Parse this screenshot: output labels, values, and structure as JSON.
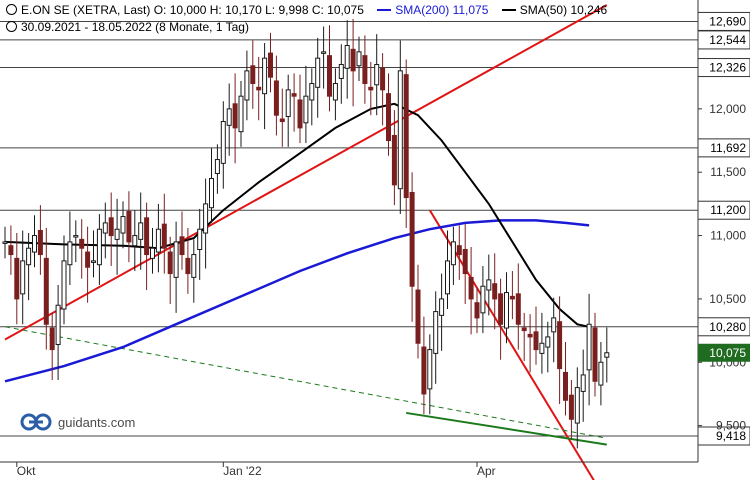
{
  "header": {
    "title": "E.ON SE (XETRA, Last)",
    "ohlc": "O: 10,000  H: 10,170  L: 9,998  C: 10,075",
    "sma200_label": "SMA(200)",
    "sma200_value": "11,075",
    "sma50_label": "SMA(50)",
    "sma50_value": "10,246",
    "range": "30.09.2021 - 18.05.2022",
    "period": "(8 Monate, 1 Tag)"
  },
  "watermark": "guidants.com",
  "colors": {
    "sma200": "#1a1ad6",
    "sma50": "#000000",
    "resistance": "#e01414",
    "support": "#1c7a1c",
    "candle_up": "#1a1a1a",
    "candle_down": "#7a1f1f",
    "last_price_bg": "#1f6b1f"
  },
  "chart_data": {
    "type": "candlestick",
    "x_ticks": [
      "Okt",
      "Jan '22",
      "Apr"
    ],
    "y_ticks": [
      9.5,
      10.0,
      10.5,
      11.0,
      11.5,
      12.0
    ],
    "y_tick_labels": [
      "9,500",
      "10,000",
      "10,500",
      "11,000",
      "11,500",
      "12,000"
    ],
    "price_lines": [
      {
        "value": 12.69,
        "label": "12,690"
      },
      {
        "value": 12.544,
        "label": "12,544"
      },
      {
        "value": 12.326,
        "label": "12,326"
      },
      {
        "value": 11.692,
        "label": "11,692"
      },
      {
        "value": 11.2,
        "label": "11,200"
      },
      {
        "value": 10.28,
        "label": "10,280"
      },
      {
        "value": 9.418,
        "label": "9,418"
      }
    ],
    "last_price": {
      "value": 10.075,
      "label": "10,075"
    },
    "closes": [
      10.95,
      10.85,
      10.5,
      10.8,
      10.9,
      11.0,
      10.85,
      10.3,
      10.1,
      10.45,
      10.8,
      10.95,
      11.0,
      10.9,
      10.75,
      10.8,
      11.05,
      11.1,
      11.0,
      11.05,
      11.15,
      10.95,
      11.0,
      11.1,
      10.85,
      10.9,
      11.05,
      10.9,
      10.7,
      10.95,
      10.85,
      10.7,
      10.85,
      11.05,
      11.25,
      11.45,
      11.6,
      11.9,
      12.0,
      11.85,
      12.1,
      12.3,
      12.2,
      12.15,
      12.4,
      12.25,
      11.95,
      11.9,
      12.15,
      12.1,
      11.85,
      12.1,
      12.2,
      12.4,
      12.45,
      12.1,
      12.2,
      12.35,
      12.5,
      12.3,
      12.45,
      12.2,
      12.15,
      12.35,
      12.15,
      11.75,
      11.4,
      12.3,
      11.3,
      10.6,
      10.15,
      9.75,
      10.1,
      10.4,
      10.5,
      10.8,
      10.95,
      10.85,
      10.7,
      10.5,
      10.35,
      10.6,
      10.65,
      10.5,
      10.3,
      10.55,
      10.5,
      10.3,
      10.25,
      10.2,
      10.1,
      10.15,
      10.2,
      10.35,
      9.95,
      9.7,
      9.55,
      9.8,
      9.9,
      10.3,
      9.85,
      10.0,
      10.075
    ],
    "sma50": [
      [
        0,
        10.95
      ],
      [
        10,
        10.93
      ],
      [
        20,
        10.92
      ],
      [
        26,
        10.9
      ],
      [
        32,
        10.98
      ],
      [
        37,
        11.2
      ],
      [
        43,
        11.42
      ],
      [
        50,
        11.65
      ],
      [
        56,
        11.85
      ],
      [
        62,
        12.0
      ],
      [
        66,
        12.04
      ],
      [
        70,
        11.95
      ],
      [
        74,
        11.75
      ],
      [
        78,
        11.5
      ],
      [
        82,
        11.25
      ],
      [
        86,
        10.95
      ],
      [
        90,
        10.65
      ],
      [
        94,
        10.42
      ],
      [
        97,
        10.3
      ],
      [
        99,
        10.28
      ]
    ],
    "sma200": [
      [
        0,
        9.85
      ],
      [
        10,
        9.97
      ],
      [
        20,
        10.12
      ],
      [
        30,
        10.32
      ],
      [
        40,
        10.52
      ],
      [
        50,
        10.72
      ],
      [
        58,
        10.86
      ],
      [
        66,
        10.98
      ],
      [
        72,
        11.05
      ],
      [
        78,
        11.1
      ],
      [
        84,
        11.12
      ],
      [
        90,
        11.12
      ],
      [
        95,
        11.1
      ],
      [
        99,
        11.08
      ]
    ],
    "trendlines": [
      {
        "color": "resistance",
        "from": [
          0,
          10.18
        ],
        "to": [
          102,
          12.82
        ]
      },
      {
        "color": "resistance",
        "from": [
          72,
          11.2
        ],
        "to": [
          102,
          8.9
        ]
      },
      {
        "color": "support",
        "from": [
          68,
          9.6
        ],
        "to": [
          102,
          9.35
        ]
      },
      {
        "color": "support",
        "dashed": true,
        "from": [
          0,
          10.28
        ],
        "to": [
          102,
          9.4
        ]
      }
    ]
  }
}
